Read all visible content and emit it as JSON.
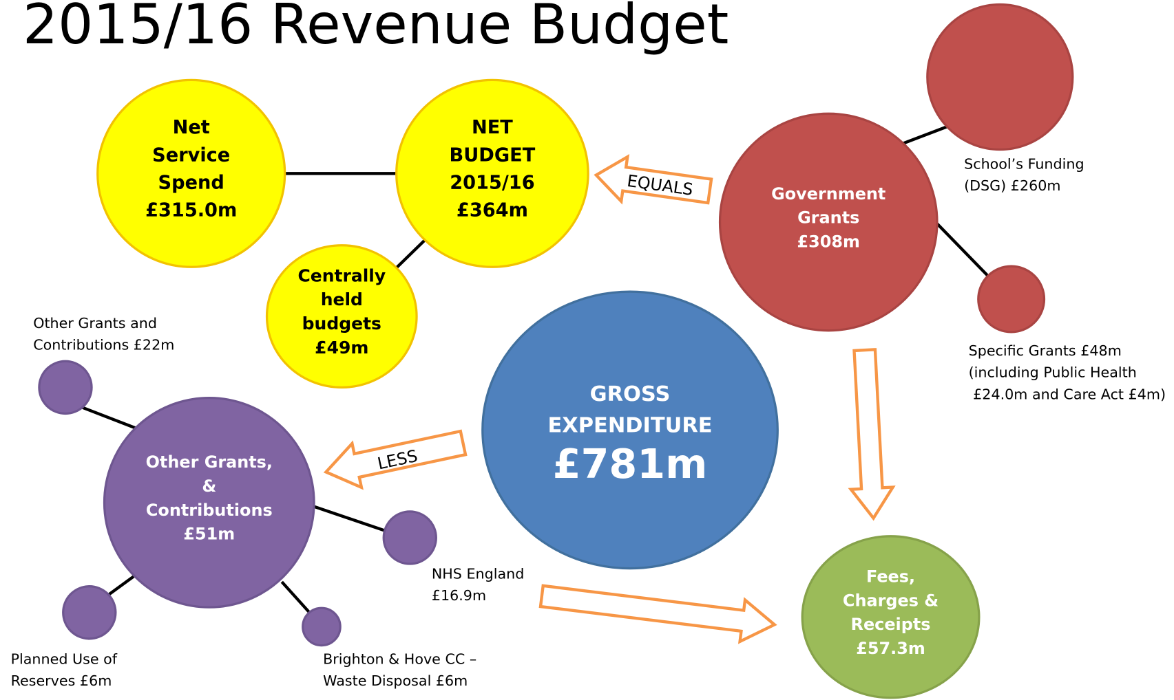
{
  "title": "2015/16 Revenue Budget",
  "nodes": [
    {
      "lines": [
        "Net",
        "Service",
        "Spend",
        "£315.0m"
      ]
    },
    {
      "lines": [
        "NET",
        "BUDGET",
        "2015/16",
        "£364m"
      ]
    },
    {
      "lines": [
        "Centrally",
        "held",
        "budgets",
        "£49m"
      ]
    },
    {
      "lines": [
        "GROSS",
        "EXPENDITURE",
        "£781m"
      ]
    },
    {
      "lines": [
        "Government",
        "Grants",
        "£308m"
      ]
    },
    {
      "lines": [
        "Other Grants,",
        "&",
        "Contributions",
        "£51m"
      ]
    },
    {
      "lines": [
        "Fees,",
        "Charges &",
        "Receipts",
        "£57.3m"
      ]
    }
  ],
  "callouts": [
    {
      "lines": [
        "School’s Funding",
        "(DSG) £260m"
      ]
    },
    {
      "lines": [
        "Specific Grants £48m",
        "(including Public Health",
        "£24.0m and Care Act £4m)"
      ]
    },
    {
      "lines": [
        "Other Grants and",
        "Contributions £22m"
      ]
    },
    {
      "lines": [
        "NHS England",
        "£16.9m"
      ]
    },
    {
      "lines": [
        "Planned Use of",
        "Reserves £6m"
      ]
    },
    {
      "lines": [
        "Brighton & Hove CC –",
        "Waste Disposal £6m"
      ]
    }
  ],
  "arrows": [
    "EQUALS",
    "LESS"
  ]
}
